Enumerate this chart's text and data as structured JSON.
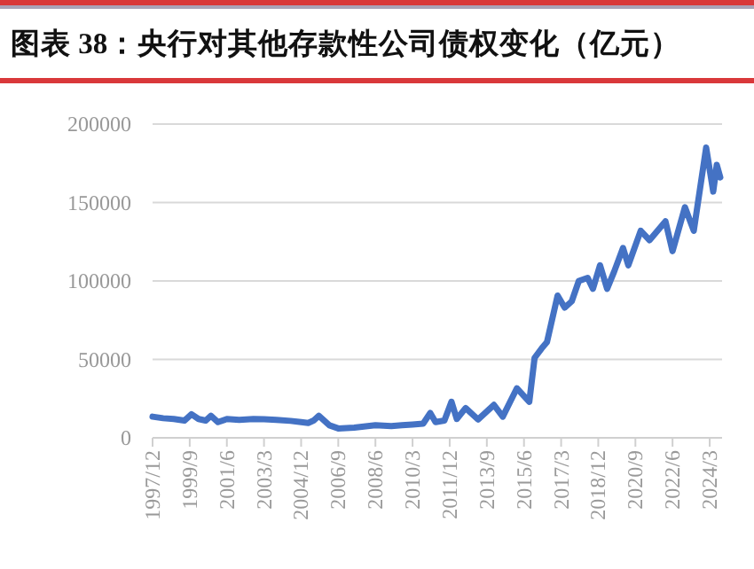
{
  "chart_data": {
    "type": "line",
    "title": "图表 38：央行对其他存款性公司债权变化（亿元）",
    "x": [
      "1997-12",
      "1998-06",
      "1998-12",
      "1999-06",
      "1999-10",
      "2000-02",
      "2000-06",
      "2000-09",
      "2001-01",
      "2001-06",
      "2002-01",
      "2002-09",
      "2003-03",
      "2003-10",
      "2004-06",
      "2004-12",
      "2005-04",
      "2005-07",
      "2005-10",
      "2006-04",
      "2006-09",
      "2007-06",
      "2008-06",
      "2009-03",
      "2009-09",
      "2010-03",
      "2010-09",
      "2011-01",
      "2011-04",
      "2011-09",
      "2012-01",
      "2012-04",
      "2012-09",
      "2013-04",
      "2014-01",
      "2014-06",
      "2015-02",
      "2015-09",
      "2015-12",
      "2016-04",
      "2016-07",
      "2017-01",
      "2017-05",
      "2017-09",
      "2018-01",
      "2018-06",
      "2018-09",
      "2019-01",
      "2019-05",
      "2019-09",
      "2020-02",
      "2020-05",
      "2020-12",
      "2021-05",
      "2022-02",
      "2022-06",
      "2023-01",
      "2023-06",
      "2024-01",
      "2024-05",
      "2024-07",
      "2024-09"
    ],
    "series": [
      {
        "color": "#4472c4",
        "values": [
          13500,
          12500,
          12000,
          11000,
          15000,
          12000,
          11000,
          14000,
          10000,
          12000,
          11500,
          12000,
          11800,
          11500,
          10800,
          10000,
          9500,
          11000,
          14000,
          8000,
          6000,
          6500,
          8000,
          7500,
          8000,
          8500,
          9000,
          15800,
          10000,
          11000,
          23000,
          12000,
          19000,
          11700,
          21000,
          13500,
          31600,
          23000,
          51000,
          57000,
          61000,
          90700,
          83000,
          87000,
          100000,
          102000,
          95000,
          110000,
          95000,
          106000,
          121000,
          110000,
          132000,
          126000,
          138000,
          119000,
          147000,
          132000,
          185000,
          157000,
          174000,
          166000
        ]
      }
    ],
    "xlim": [
      "1997-12",
      "2024-10"
    ],
    "xticks": [
      {
        "value": "1997-12",
        "label": "1997/12"
      },
      {
        "value": "1999-09",
        "label": "1999/9"
      },
      {
        "value": "2001-06",
        "label": "2001/6"
      },
      {
        "value": "2003-03",
        "label": "2003/3"
      },
      {
        "value": "2004-12",
        "label": "2004/12"
      },
      {
        "value": "2006-09",
        "label": "2006/9"
      },
      {
        "value": "2008-06",
        "label": "2008/6"
      },
      {
        "value": "2010-03",
        "label": "2010/3"
      },
      {
        "value": "2011-12",
        "label": "2011/12"
      },
      {
        "value": "2013-09",
        "label": "2013/9"
      },
      {
        "value": "2015-06",
        "label": "2015/6"
      },
      {
        "value": "2017-03",
        "label": "2017/3"
      },
      {
        "value": "2018-12",
        "label": "2018/12"
      },
      {
        "value": "2020-09",
        "label": "2020/9"
      },
      {
        "value": "2022-06",
        "label": "2022/6"
      },
      {
        "value": "2024-03",
        "label": "2024/3"
      }
    ],
    "ylim": [
      0,
      200000
    ],
    "yticks": [
      0,
      50000,
      100000,
      150000,
      200000
    ],
    "grid": "y"
  }
}
